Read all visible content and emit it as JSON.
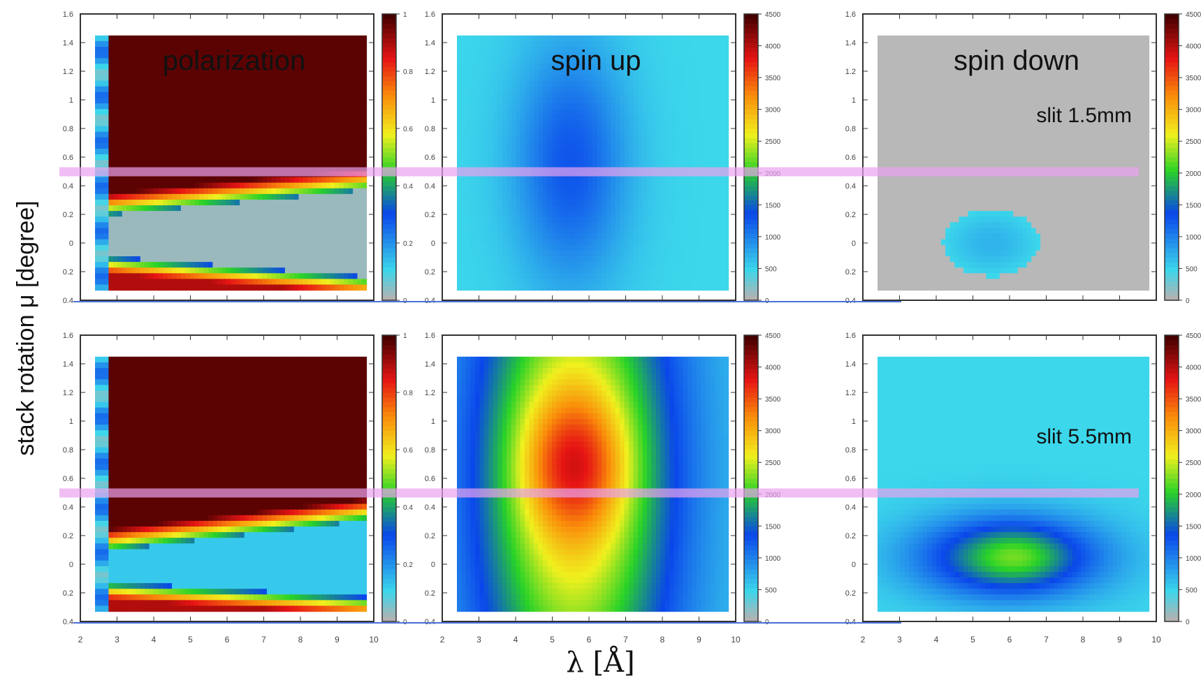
{
  "figure": {
    "ylabel": "stack rotation  μ [degree]",
    "xlabel": "λ [Å]",
    "highlight_mu": 0.5,
    "highlight_color": "#e9a3ef"
  },
  "axes": {
    "x_range": [
      2,
      10
    ],
    "x_ticks": [
      "2",
      "3",
      "4",
      "5",
      "6",
      "7",
      "8",
      "9",
      "10"
    ],
    "y_range": [
      -0.4,
      1.6
    ],
    "y_ticks": [
      "-0.4",
      "-0.2",
      "0",
      "0.2",
      "0.4",
      "0.6",
      "0.8",
      "1",
      "1.2",
      "1.4",
      "1.6"
    ],
    "y_tick_labels": [
      "0.4",
      "0.2",
      "0",
      "0.2",
      "0.4",
      "0.6",
      "0.8",
      "1",
      "1.2",
      "1.4",
      "1.6"
    ],
    "data_x_range": [
      2.4,
      9.8
    ],
    "data_y_range": [
      -0.33,
      1.45
    ]
  },
  "colormaps": {
    "polarization": {
      "range": [
        0,
        1
      ],
      "ticks": [
        "0",
        "0.2",
        "0.4",
        "0.6",
        "0.8",
        "1"
      ]
    },
    "counts": {
      "range": [
        0,
        4500
      ],
      "ticks": [
        "0",
        "500",
        "1000",
        "1500",
        "2000",
        "2500",
        "3000",
        "3500",
        "4000",
        "4500"
      ]
    }
  },
  "chart_data": [
    {
      "type": "heatmap",
      "title": "polarization",
      "annotation": "",
      "row": "slit 1.5mm",
      "zlim": [
        0,
        1
      ],
      "description_values": {
        "high_region_above_mu": 0.45,
        "value_high": 0.98,
        "low_band_mu": [
          -0.05,
          0.15
        ]
      }
    },
    {
      "type": "heatmap",
      "title": "spin up",
      "annotation": "",
      "row": "slit 1.5mm",
      "zlim": [
        0,
        4500
      ],
      "peak": {
        "x": 5.5,
        "y": 0.5,
        "value": 1000
      }
    },
    {
      "type": "heatmap",
      "title": "spin down",
      "annotation": "slit 1.5mm",
      "row": "slit 1.5mm",
      "zlim": [
        0,
        4500
      ],
      "peak": {
        "x": 5.5,
        "y": 0.0,
        "value": 600
      }
    },
    {
      "type": "heatmap",
      "title": "",
      "annotation": "",
      "row": "slit 5.5mm",
      "zlim": [
        0,
        1
      ],
      "description_values": {
        "high_region_above_mu": 0.45,
        "value_high": 0.98,
        "low_band_mu": [
          -0.1,
          0.15
        ]
      }
    },
    {
      "type": "heatmap",
      "title": "",
      "annotation": "",
      "row": "slit 5.5mm",
      "zlim": [
        0,
        4500
      ],
      "peak": {
        "x": 5.6,
        "y": 0.65,
        "value": 3300
      }
    },
    {
      "type": "heatmap",
      "title": "",
      "annotation": "slit 5.5mm",
      "row": "slit 5.5mm",
      "zlim": [
        0,
        4500
      ],
      "peak": {
        "x": 6.0,
        "y": 0.05,
        "value": 1900
      }
    }
  ]
}
